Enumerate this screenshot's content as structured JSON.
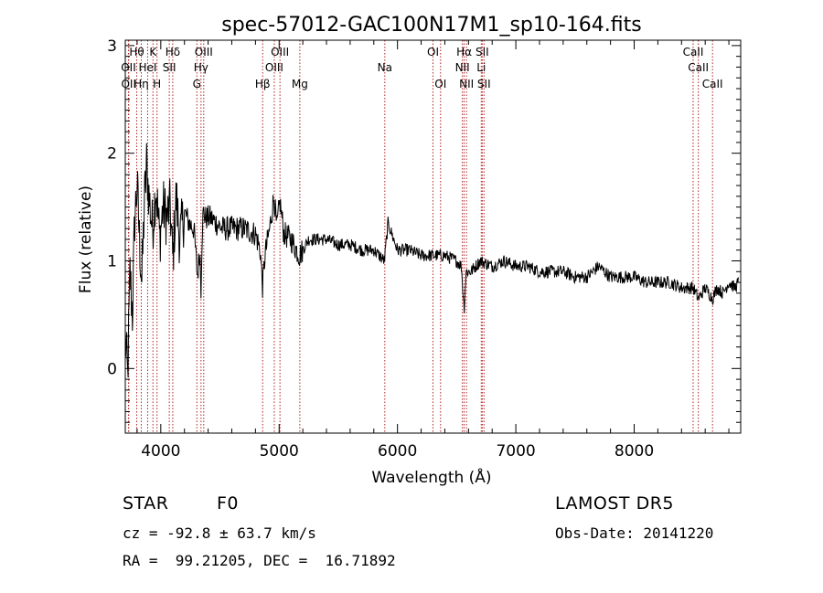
{
  "chart_data": {
    "type": "line",
    "title": "spec-57012-GAC100N17M1_sp10-164.fits",
    "xlabel": "Wavelength (Å)",
    "ylabel": "Flux (relative)",
    "xlim": [
      3700,
      8900
    ],
    "ylim": [
      -0.6,
      3.05
    ],
    "xticks": [
      4000,
      5000,
      6000,
      7000,
      8000
    ],
    "yticks": [
      0,
      1,
      2,
      3
    ],
    "grid": false,
    "colors": {
      "spectrum": "#000000",
      "line_marker": "#b22222",
      "text": "#000000"
    },
    "spectrum_anchor_points": {
      "x": [
        3700,
        3720,
        3740,
        3760,
        3780,
        3800,
        3820,
        3840,
        3860,
        3880,
        3900,
        3930,
        3960,
        3990,
        4020,
        4050,
        4080,
        4101,
        4130,
        4160,
        4200,
        4240,
        4280,
        4310,
        4330,
        4340,
        4350,
        4360,
        4380,
        4420,
        4470,
        4520,
        4600,
        4700,
        4800,
        4840,
        4861,
        4880,
        4920,
        4957,
        4980,
        5007,
        5040,
        5100,
        5172,
        5250,
        5400,
        5500,
        5600,
        5700,
        5800,
        5890,
        5920,
        6000,
        6100,
        6200,
        6300,
        6400,
        6500,
        6540,
        6563,
        6580,
        6620,
        6700,
        6800,
        6900,
        7000,
        7100,
        7200,
        7300,
        7400,
        7500,
        7600,
        7700,
        7800,
        7900,
        8000,
        8100,
        8200,
        8300,
        8400,
        8498,
        8542,
        8600,
        8662,
        8700,
        8750,
        8800,
        8850,
        8880
      ],
      "y": [
        0.3,
        -0.1,
        0.9,
        0.5,
        1.4,
        1.7,
        1.2,
        0.8,
        1.5,
        1.9,
        1.6,
        1.3,
        1.7,
        1.2,
        1.5,
        1.4,
        1.5,
        1.0,
        1.6,
        1.2,
        1.45,
        1.35,
        1.3,
        0.85,
        1.1,
        0.75,
        1.3,
        1.45,
        1.4,
        1.4,
        1.35,
        1.3,
        1.3,
        1.3,
        1.25,
        1.1,
        0.75,
        1.05,
        1.3,
        1.6,
        1.3,
        1.55,
        1.25,
        1.2,
        1.05,
        1.2,
        1.2,
        1.15,
        1.15,
        1.1,
        1.1,
        1.0,
        1.35,
        1.1,
        1.1,
        1.05,
        1.05,
        1.05,
        1.0,
        0.95,
        0.55,
        0.9,
        0.9,
        1.0,
        0.95,
        1.0,
        0.95,
        0.95,
        0.9,
        0.9,
        0.9,
        0.85,
        0.85,
        0.95,
        0.85,
        0.85,
        0.85,
        0.8,
        0.8,
        0.8,
        0.75,
        0.75,
        0.65,
        0.75,
        0.65,
        0.75,
        0.7,
        0.8,
        0.75,
        0.8
      ]
    },
    "lines": [
      {
        "label": "Hθ",
        "wavelength": 3797,
        "row": 1
      },
      {
        "label": "OII",
        "wavelength": 3727,
        "row": 2
      },
      {
        "label": "OII",
        "wavelength": 3729,
        "row": 3
      },
      {
        "label": "Hη",
        "wavelength": 3835,
        "row": 3
      },
      {
        "label": "HeI",
        "wavelength": 3889,
        "row": 2
      },
      {
        "label": "K",
        "wavelength": 3934,
        "row": 1
      },
      {
        "label": "H",
        "wavelength": 3968,
        "row": 3
      },
      {
        "label": "SII",
        "wavelength": 4072,
        "row": 2
      },
      {
        "label": "Hδ",
        "wavelength": 4101,
        "row": 1
      },
      {
        "label": "OIII",
        "wavelength": 4363,
        "row": 1
      },
      {
        "label": "Hγ",
        "wavelength": 4340,
        "row": 2
      },
      {
        "label": "G",
        "wavelength": 4305,
        "row": 3
      },
      {
        "label": "Hβ",
        "wavelength": 4861,
        "row": 3
      },
      {
        "label": "OIII",
        "wavelength": 4959,
        "row": 2
      },
      {
        "label": "OIII",
        "wavelength": 5007,
        "row": 1
      },
      {
        "label": "Mg",
        "wavelength": 5175,
        "row": 3
      },
      {
        "label": "Na",
        "wavelength": 5893,
        "row": 2
      },
      {
        "label": "OI",
        "wavelength": 6300,
        "row": 1
      },
      {
        "label": "OI",
        "wavelength": 6364,
        "row": 3
      },
      {
        "label": "NII",
        "wavelength": 6548,
        "row": 2
      },
      {
        "label": "Hα",
        "wavelength": 6563,
        "row": 1
      },
      {
        "label": "NII",
        "wavelength": 6583,
        "row": 3
      },
      {
        "label": "SII",
        "wavelength": 6716,
        "row": 1
      },
      {
        "label": "Li",
        "wavelength": 6708,
        "row": 2
      },
      {
        "label": "SII",
        "wavelength": 6731,
        "row": 3
      },
      {
        "label": "CaII",
        "wavelength": 8498,
        "row": 1
      },
      {
        "label": "CaII",
        "wavelength": 8542,
        "row": 2
      },
      {
        "label": "CaII",
        "wavelength": 8662,
        "row": 3
      }
    ]
  },
  "info": {
    "class": "STAR",
    "subclass": "F0",
    "survey": "LAMOST DR5",
    "cz": "cz = -92.8 ± 63.7 km/s",
    "obs_date": "Obs-Date: 20141220",
    "coords": "RA =  99.21205, DEC =  16.71892"
  }
}
